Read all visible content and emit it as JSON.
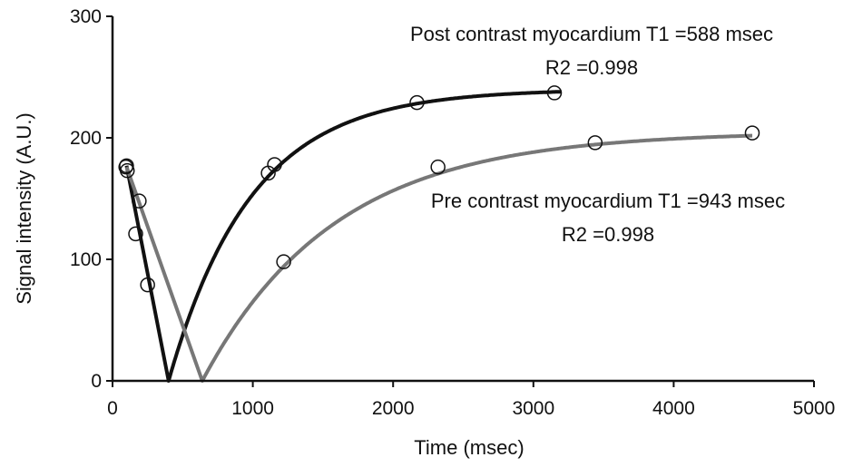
{
  "chart_data": {
    "type": "scatter",
    "xlabel": "Time (msec)",
    "ylabel": "Signal intensity (A.U.)",
    "xlim": [
      0,
      5000
    ],
    "ylim": [
      0,
      300
    ],
    "x_ticks": [
      0,
      1000,
      2000,
      3000,
      4000,
      5000
    ],
    "y_ticks": [
      0,
      100,
      200,
      300
    ],
    "grid": false,
    "legend": "none",
    "series": [
      {
        "color": "#111111",
        "points": [
          {
            "x": 100,
            "y": 177
          },
          {
            "x": 105,
            "y": 173
          },
          {
            "x": 165,
            "y": 121
          },
          {
            "x": 250,
            "y": 79
          },
          {
            "x": 1110,
            "y": 171
          },
          {
            "x": 1155,
            "y": 178
          },
          {
            "x": 2170,
            "y": 229
          },
          {
            "x": 3150,
            "y": 237
          }
        ],
        "fit": {
          "model": "abs_inversion_recovery",
          "S0": 240,
          "T1": 588,
          "x_start": 100,
          "x_end": 3200,
          "null_x": 400
        },
        "annotation": {
          "line1": "Post contrast myocardium T1 =588 msec",
          "line2": "R2 =0.998"
        }
      },
      {
        "color": "#777777",
        "points": [
          {
            "x": 95,
            "y": 176
          },
          {
            "x": 190,
            "y": 148
          },
          {
            "x": 1220,
            "y": 98
          },
          {
            "x": 2320,
            "y": 176
          },
          {
            "x": 3440,
            "y": 196
          },
          {
            "x": 4560,
            "y": 204
          }
        ],
        "fit": {
          "model": "abs_inversion_recovery",
          "S0": 205,
          "T1": 943,
          "x_start": 100,
          "x_end": 4560,
          "null_x": 640
        },
        "annotation": {
          "line1": "Pre contrast myocardium T1 =943 msec",
          "line2": "R2 =0.998"
        }
      }
    ]
  }
}
